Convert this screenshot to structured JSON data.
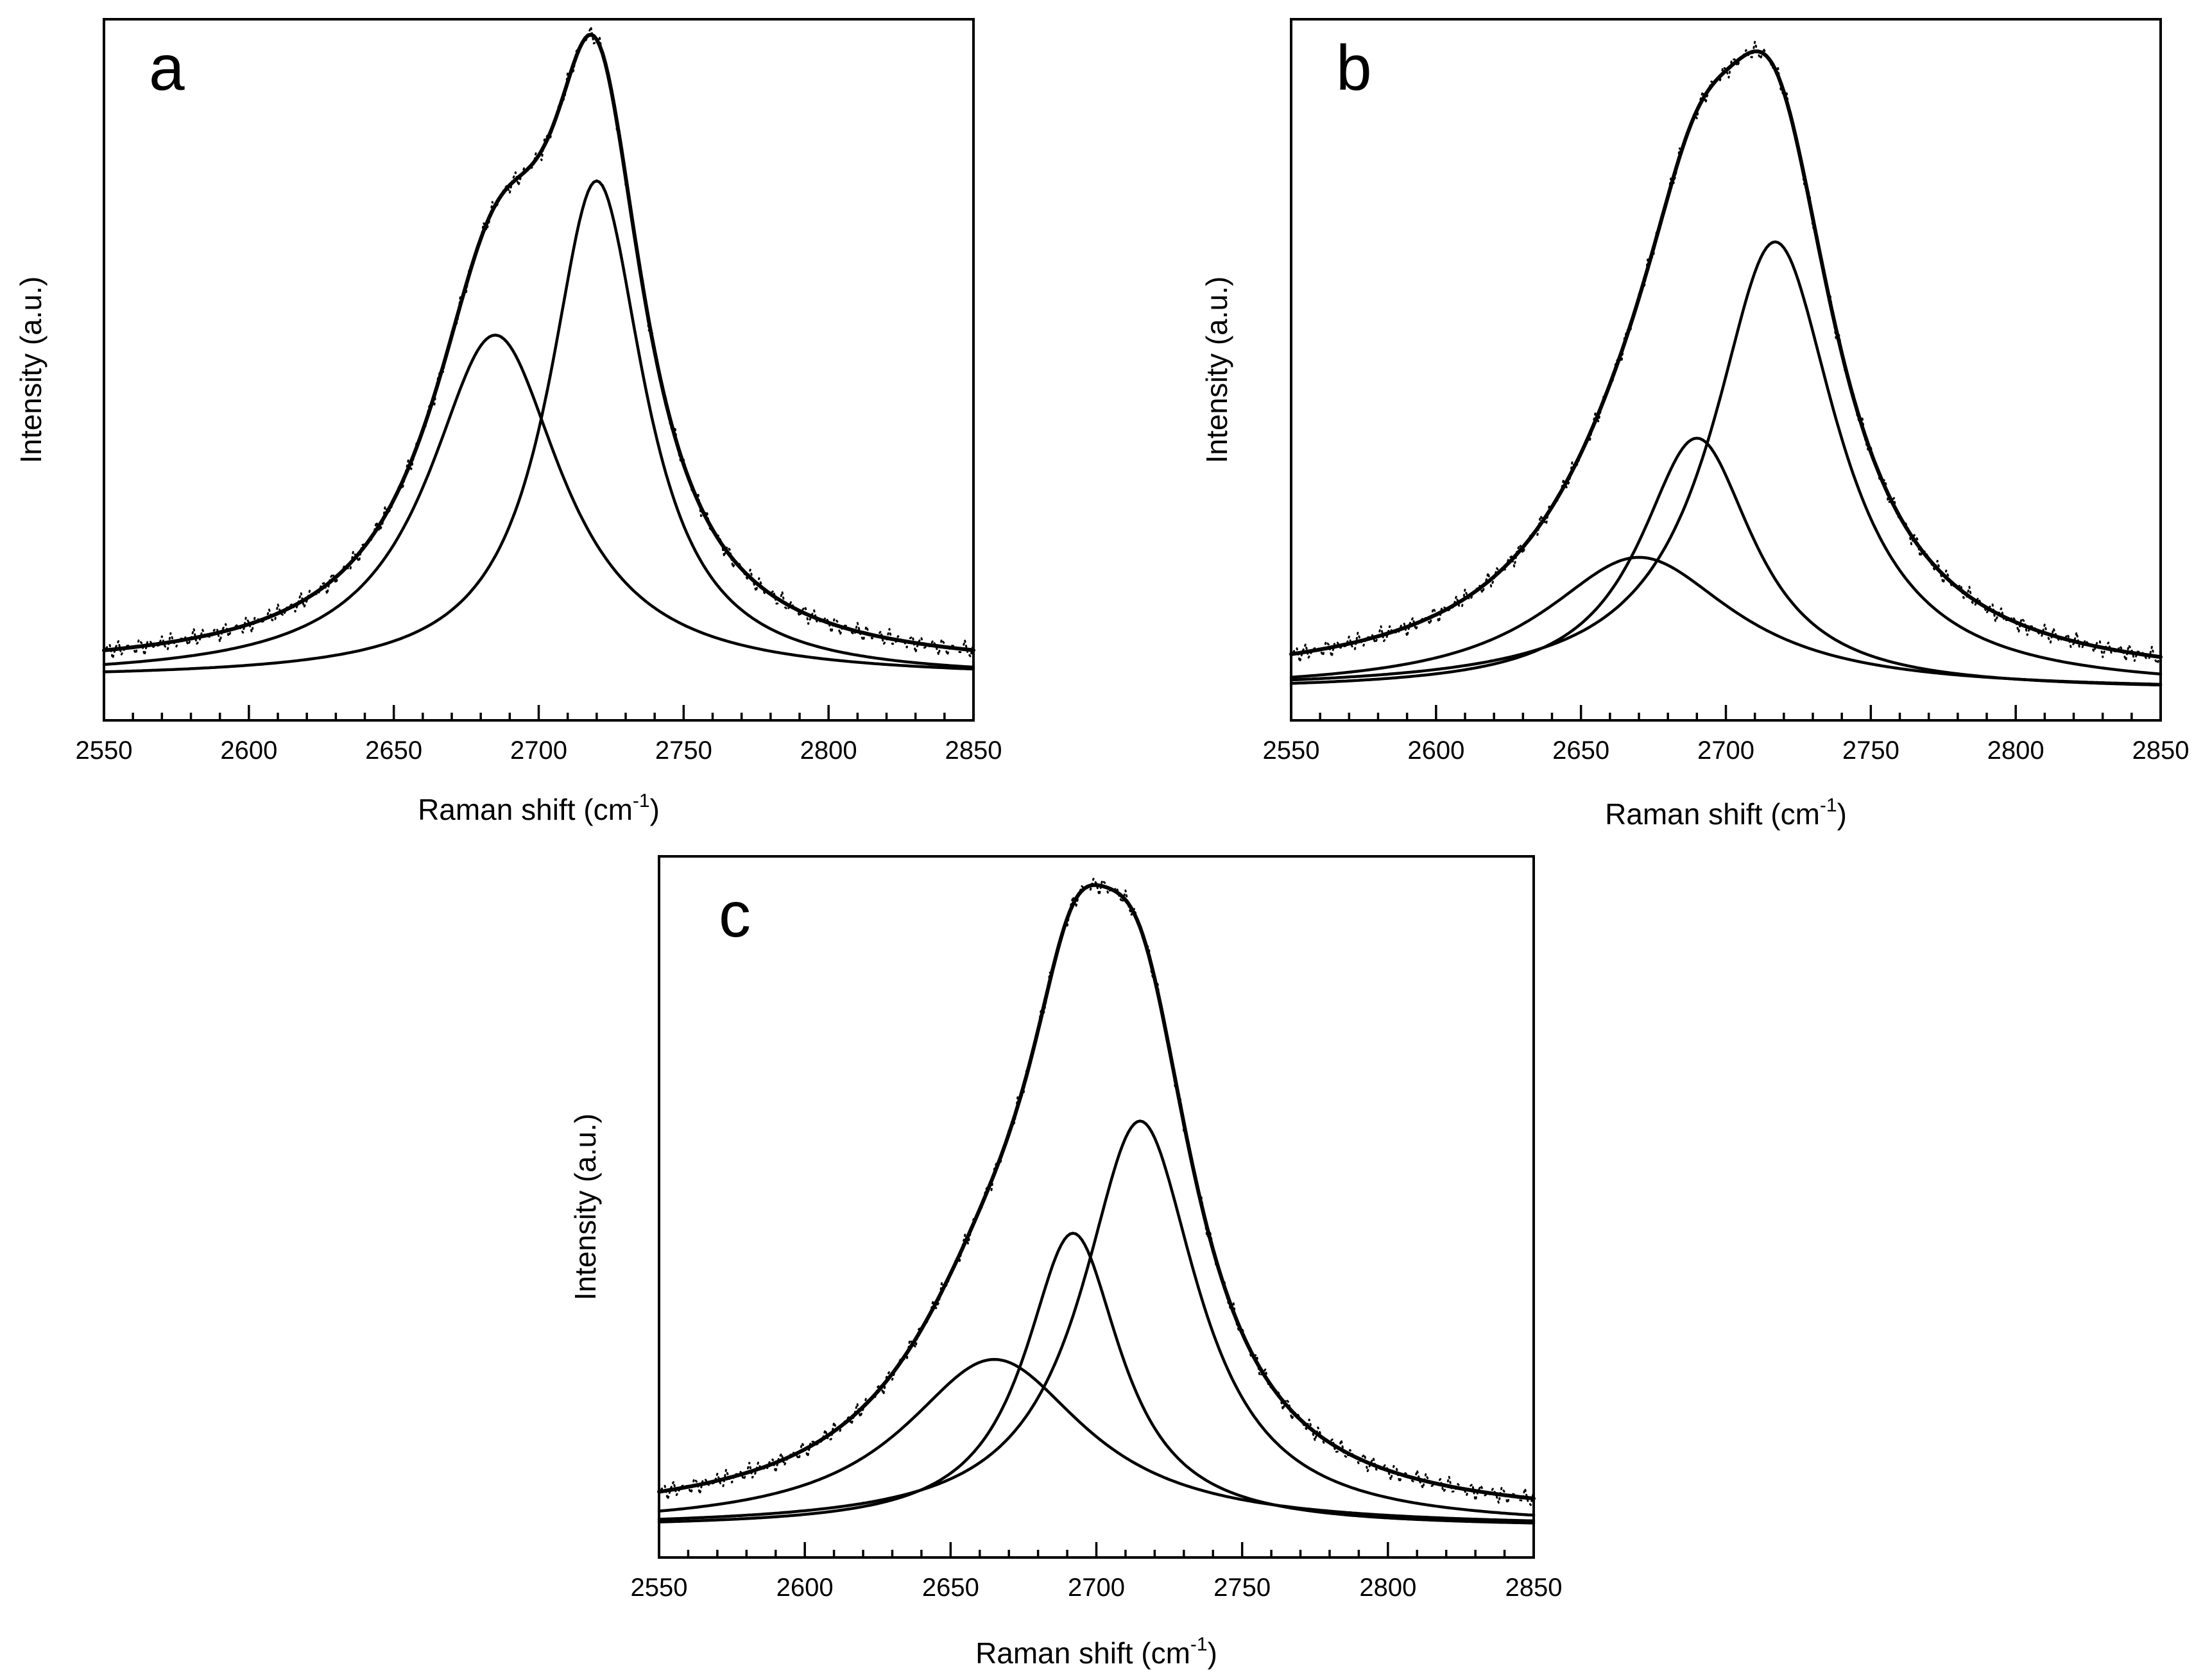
{
  "chart_data": [
    {
      "panel": "a",
      "type": "line",
      "title": "a",
      "xlabel": "Raman shift (cm",
      "xlabel_sup": "-1",
      "xlabel_close": ")",
      "ylabel": "Intensity (a.u.)",
      "xlim": [
        2550,
        2850
      ],
      "ylim": [
        0,
        1.0
      ],
      "x_ticks": [
        2550,
        2600,
        2650,
        2700,
        2750,
        2800,
        2850
      ],
      "x_tick_labels": [
        "2550",
        "2600",
        "2650",
        "2700",
        "2750",
        "2800",
        "2850"
      ],
      "y_ticks_shown": false,
      "baseline": 0.07,
      "components": [
        {
          "name": "peak 1",
          "center": 2685,
          "height": 0.49,
          "width": 28
        },
        {
          "name": "peak 2",
          "center": 2720,
          "height": 0.71,
          "width": 20
        }
      ],
      "series": [
        {
          "name": "experimental",
          "style": "dotted"
        },
        {
          "name": "cumulative fit",
          "style": "solid-thick"
        },
        {
          "name": "peak 1",
          "style": "solid"
        },
        {
          "name": "peak 2",
          "style": "solid"
        }
      ]
    },
    {
      "panel": "b",
      "type": "line",
      "title": "b",
      "xlabel": "Raman shift (cm",
      "xlabel_sup": "-1",
      "xlabel_close": ")",
      "ylabel": "Intensity (a.u.)",
      "xlim": [
        2550,
        2850
      ],
      "ylim": [
        0,
        1.0
      ],
      "x_ticks": [
        2550,
        2600,
        2650,
        2700,
        2750,
        2800,
        2850
      ],
      "x_tick_labels": [
        "2550",
        "2600",
        "2650",
        "2700",
        "2750",
        "2800",
        "2850"
      ],
      "y_ticks_shown": false,
      "baseline": 0.05,
      "components": [
        {
          "name": "peak 1",
          "center": 2670,
          "height": 0.19,
          "width": 40
        },
        {
          "name": "peak 2",
          "center": 2690,
          "height": 0.36,
          "width": 24
        },
        {
          "name": "peak 3",
          "center": 2717,
          "height": 0.64,
          "width": 26
        }
      ],
      "series": [
        {
          "name": "experimental",
          "style": "dotted"
        },
        {
          "name": "cumulative fit",
          "style": "solid-thick"
        },
        {
          "name": "peak 1",
          "style": "solid"
        },
        {
          "name": "peak 2",
          "style": "solid"
        },
        {
          "name": "peak 3",
          "style": "solid"
        }
      ]
    },
    {
      "panel": "c",
      "type": "line",
      "title": "c",
      "xlabel": "Raman shift (cm",
      "xlabel_sup": "-1",
      "xlabel_close": ")",
      "ylabel": "Intensity (a.u.)",
      "xlim": [
        2550,
        2850
      ],
      "ylim": [
        0,
        1.0
      ],
      "x_ticks": [
        2550,
        2600,
        2650,
        2700,
        2750,
        2800,
        2850
      ],
      "x_tick_labels": [
        "2550",
        "2600",
        "2650",
        "2700",
        "2750",
        "2800",
        "2850"
      ],
      "y_ticks_shown": false,
      "baseline": 0.05,
      "components": [
        {
          "name": "peak 1",
          "center": 2665,
          "height": 0.24,
          "width": 38
        },
        {
          "name": "peak 2",
          "center": 2692,
          "height": 0.42,
          "width": 20
        },
        {
          "name": "peak 3",
          "center": 2715,
          "height": 0.58,
          "width": 24
        }
      ],
      "series": [
        {
          "name": "experimental",
          "style": "dotted"
        },
        {
          "name": "cumulative fit",
          "style": "solid-thick"
        },
        {
          "name": "peak 1",
          "style": "solid"
        },
        {
          "name": "peak 2",
          "style": "solid"
        },
        {
          "name": "peak 3",
          "style": "solid"
        }
      ]
    }
  ]
}
